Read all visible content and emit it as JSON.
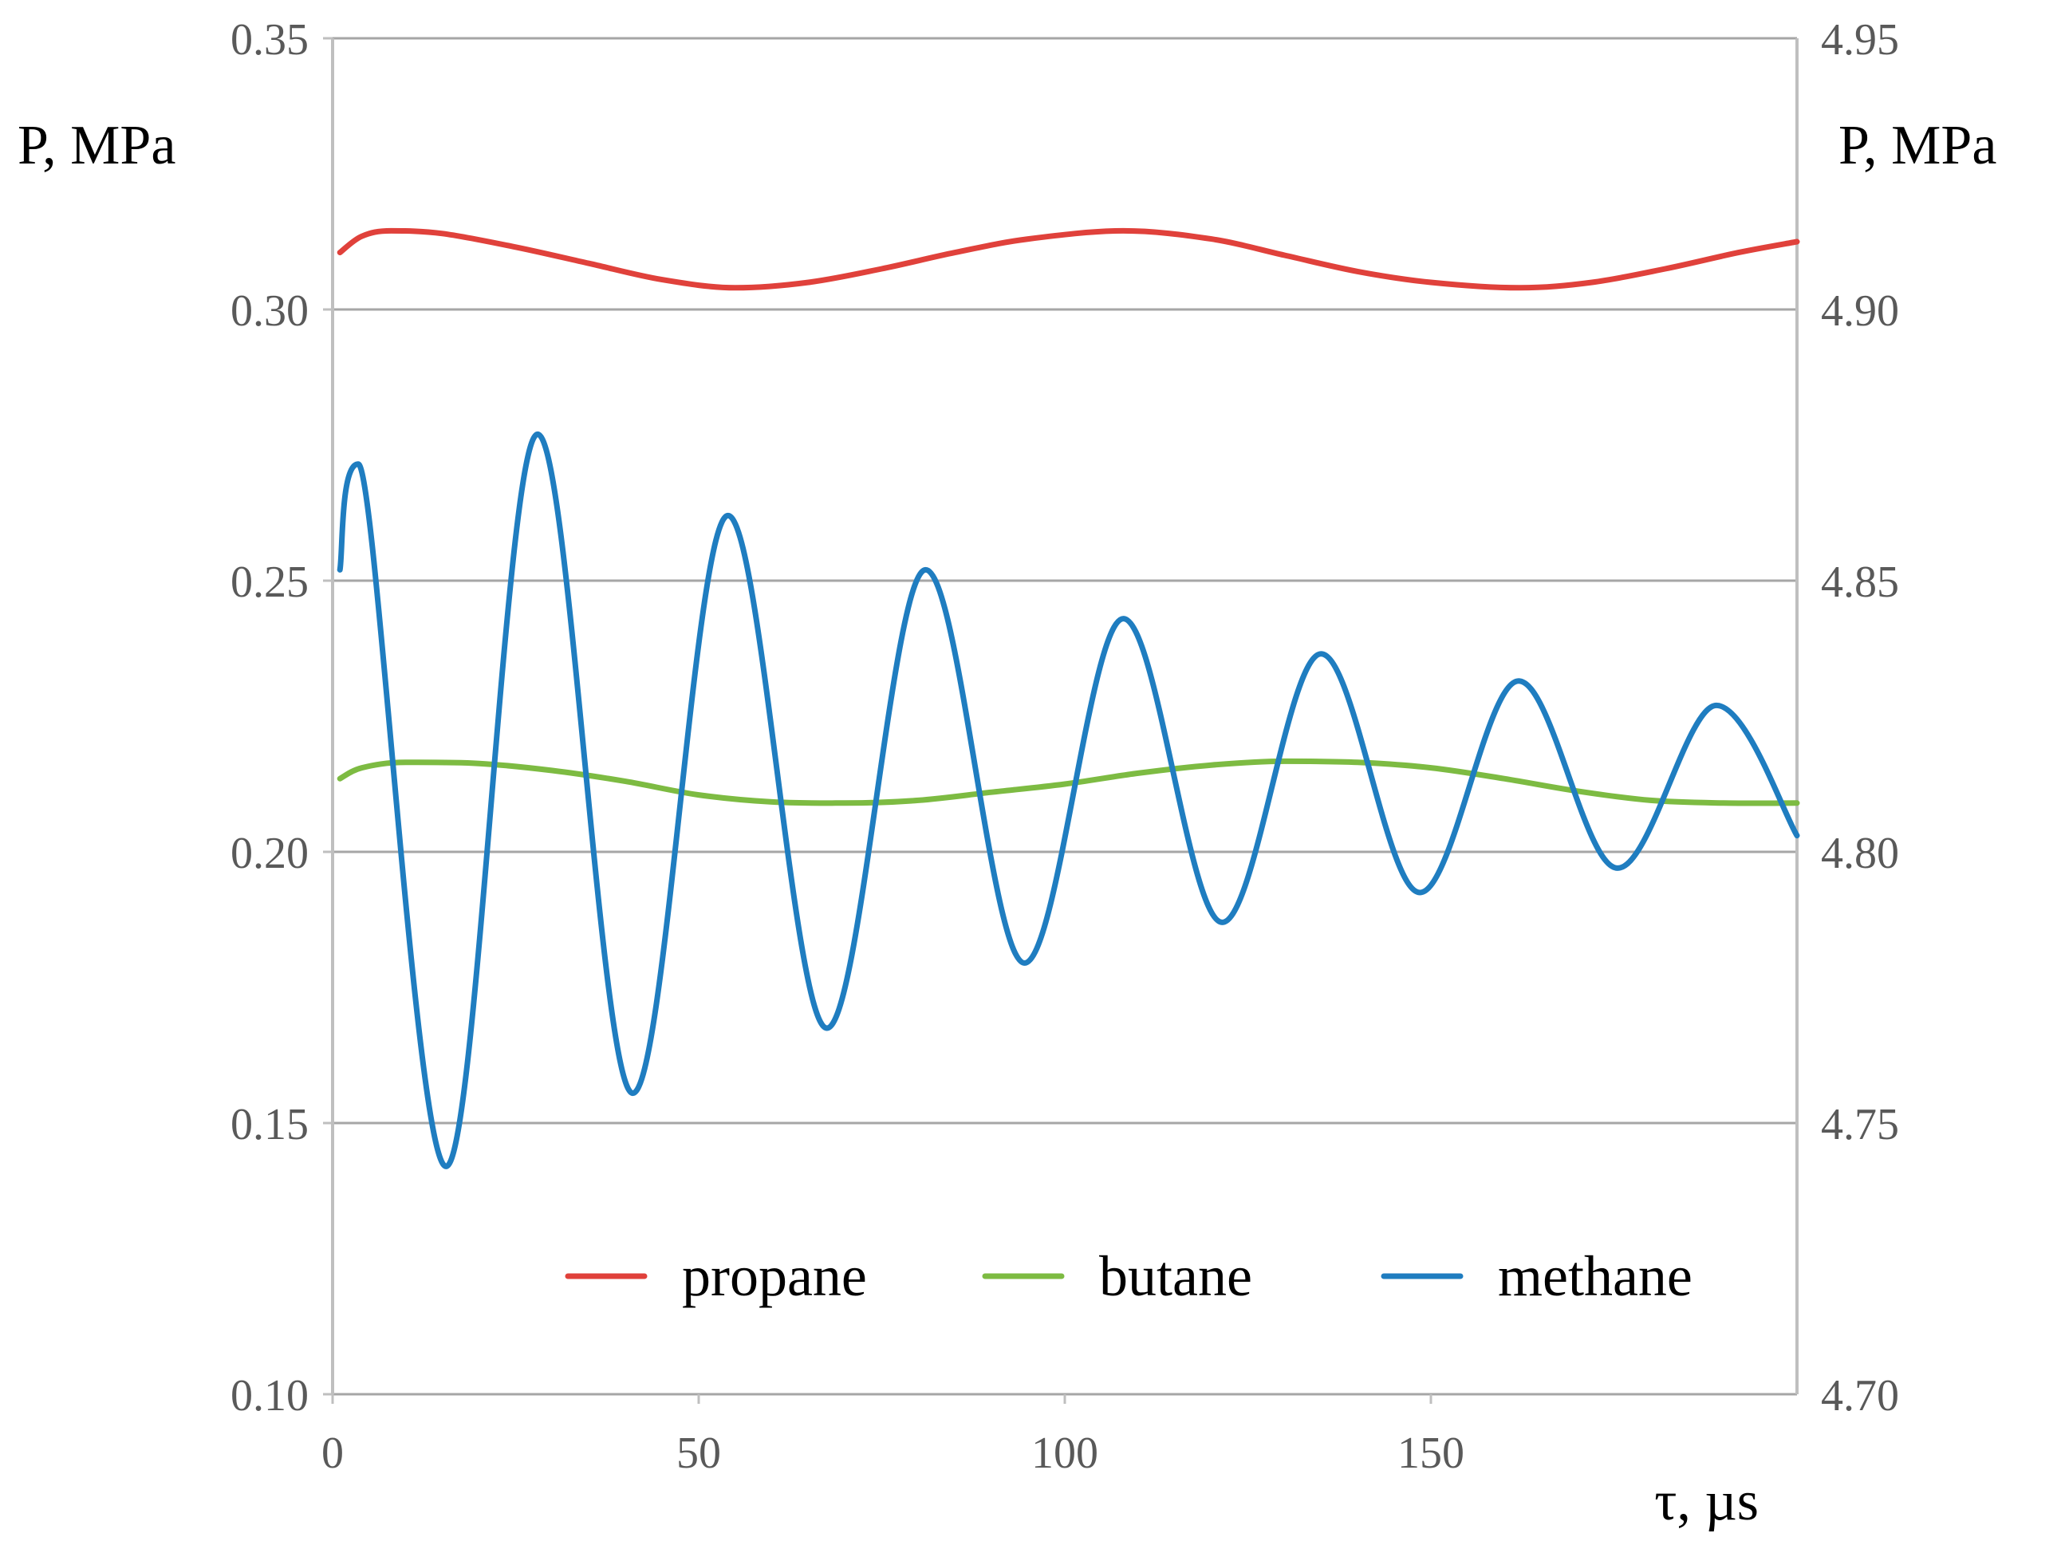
{
  "chart_data": {
    "type": "line",
    "title": "",
    "xlabel": "τ, µs",
    "ylabel_left": "P, MPa",
    "ylabel_right": "P, MPa",
    "xlim": [
      0,
      200
    ],
    "ylim_left": [
      0.1,
      0.35
    ],
    "ylim_right": [
      4.7,
      4.95
    ],
    "x_ticks": [
      "0",
      "50",
      "100",
      "150"
    ],
    "y_left_ticks": [
      "0.10",
      "0.15",
      "0.20",
      "0.25",
      "0.30",
      "0.35"
    ],
    "y_right_ticks": [
      "4.70",
      "4.75",
      "4.80",
      "4.85",
      "4.90",
      "4.95"
    ],
    "grid": "horizontal",
    "legend_position": "bottom-right",
    "series": [
      {
        "name": "propane",
        "color": "#e0413b",
        "axis": "left",
        "points": [
          [
            1,
            0.3105
          ],
          [
            4,
            0.3135
          ],
          [
            8,
            0.3145
          ],
          [
            15,
            0.314
          ],
          [
            25,
            0.3115
          ],
          [
            35,
            0.3085
          ],
          [
            45,
            0.3055
          ],
          [
            55,
            0.304
          ],
          [
            65,
            0.305
          ],
          [
            75,
            0.3075
          ],
          [
            85,
            0.3105
          ],
          [
            95,
            0.313
          ],
          [
            108,
            0.3145
          ],
          [
            120,
            0.313
          ],
          [
            130,
            0.31
          ],
          [
            140,
            0.307
          ],
          [
            150,
            0.305
          ],
          [
            162,
            0.304
          ],
          [
            172,
            0.305
          ],
          [
            182,
            0.3075
          ],
          [
            192,
            0.3105
          ],
          [
            200,
            0.3125
          ]
        ]
      },
      {
        "name": "butane",
        "color": "#7dbb42",
        "axis": "left",
        "points": [
          [
            1,
            0.2135
          ],
          [
            4,
            0.2155
          ],
          [
            10,
            0.2165
          ],
          [
            20,
            0.2163
          ],
          [
            30,
            0.215
          ],
          [
            40,
            0.213
          ],
          [
            50,
            0.2105
          ],
          [
            60,
            0.2092
          ],
          [
            70,
            0.209
          ],
          [
            80,
            0.2095
          ],
          [
            90,
            0.211
          ],
          [
            100,
            0.2125
          ],
          [
            110,
            0.2145
          ],
          [
            120,
            0.216
          ],
          [
            130,
            0.2167
          ],
          [
            140,
            0.2165
          ],
          [
            150,
            0.2155
          ],
          [
            160,
            0.2135
          ],
          [
            170,
            0.2112
          ],
          [
            180,
            0.2095
          ],
          [
            190,
            0.209
          ],
          [
            200,
            0.209
          ]
        ]
      },
      {
        "name": "methane",
        "color": "#1f7dc0",
        "axis": "left",
        "points": [
          [
            1,
            0.252
          ],
          [
            3.5,
            0.2715
          ],
          [
            15.5,
            0.142
          ],
          [
            28,
            0.277
          ],
          [
            41,
            0.1555
          ],
          [
            54,
            0.262
          ],
          [
            67.5,
            0.1675
          ],
          [
            81,
            0.252
          ],
          [
            94.5,
            0.1795
          ],
          [
            108,
            0.243
          ],
          [
            121.5,
            0.187
          ],
          [
            135,
            0.2365
          ],
          [
            148.5,
            0.1925
          ],
          [
            162,
            0.2315
          ],
          [
            175.5,
            0.197
          ],
          [
            189,
            0.227
          ],
          [
            200,
            0.203
          ]
        ]
      }
    ]
  }
}
